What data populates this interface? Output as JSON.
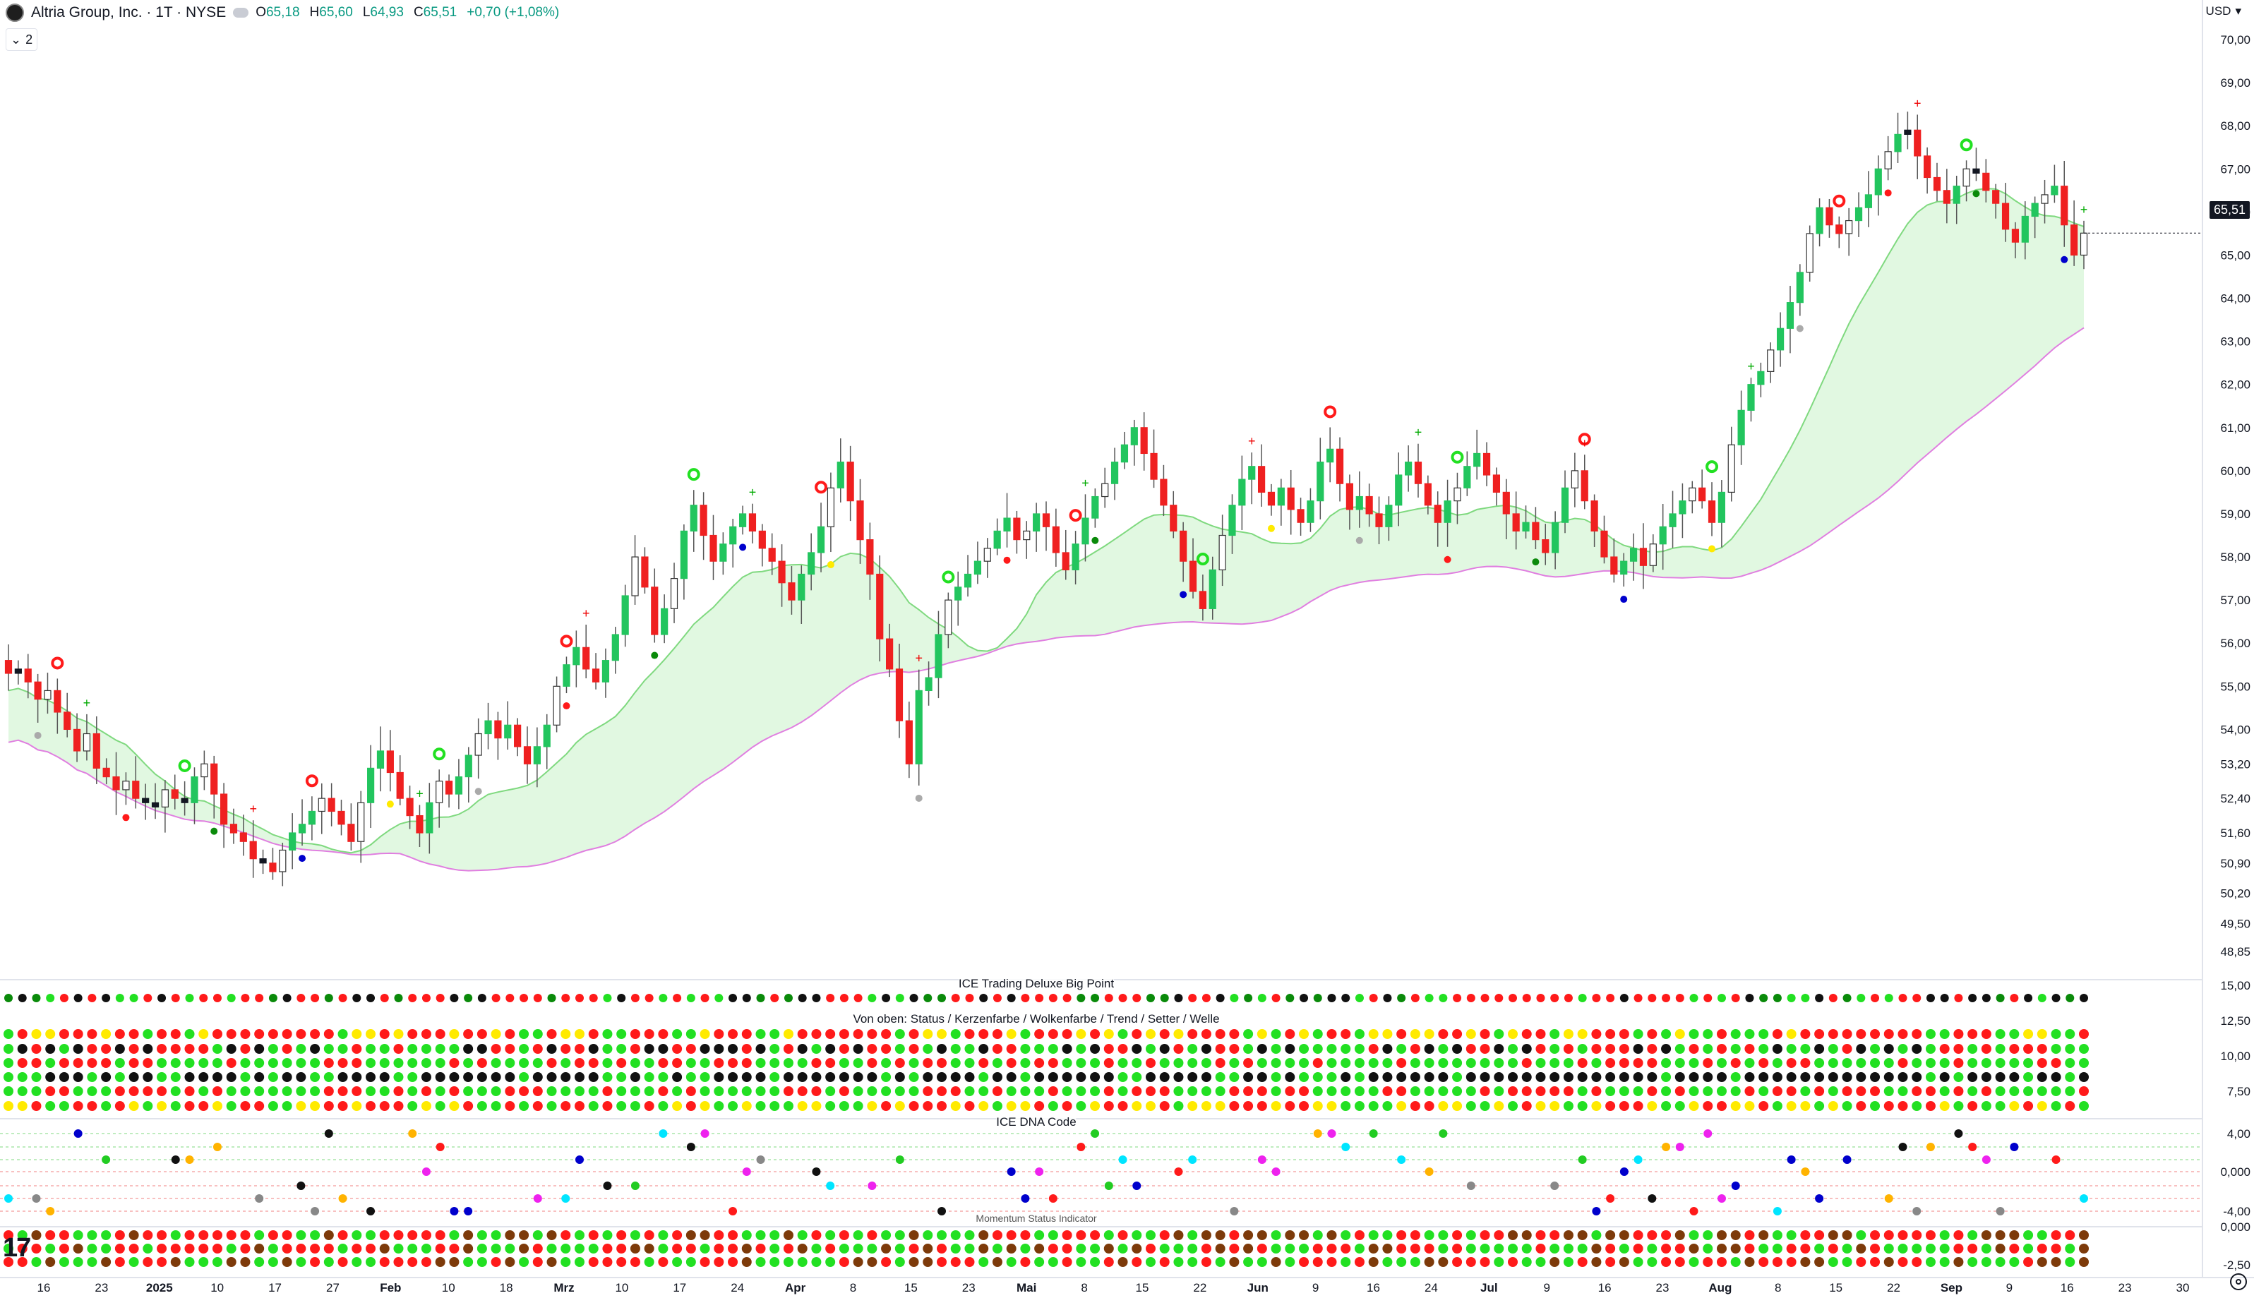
{
  "header": {
    "symbol": "Altria Group, Inc. · 1T · NYSE",
    "open_label": "O",
    "open": "65,18",
    "high_label": "H",
    "high": "65,60",
    "low_label": "L",
    "low": "64,93",
    "close_label": "C",
    "close": "65,51",
    "change": "+0,70 (+1,08%)",
    "indicator_count": "2",
    "currency": "USD"
  },
  "current_price": "65,51",
  "colors": {
    "up": "#22c55e",
    "down": "#ef2020",
    "doji": "#131722",
    "kumo_bull": "#d4f5d4",
    "kumo_bear": "#f8d6f4",
    "span_a": "#7fd97f",
    "span_b": "#e07fe0",
    "dot_red": "#ff1a1a",
    "dot_green": "#22e022",
    "dot_black": "#111111",
    "dot_yellow": "#ffea00",
    "dot_darkgreen": "#0a8a0a",
    "dna_blue": "#0000cc",
    "dna_magenta": "#ee22ee",
    "dna_cyan": "#00e5ff",
    "dna_orange": "#ffb300",
    "dna_lime": "#22cc22"
  },
  "panes": {
    "bigpoint": "ICE Trading Deluxe Big Point",
    "ice_status": "Von oben: Status / Kerzenfarbe / Wolkenfarbe / Trend / Setter / Welle",
    "dna": "ICE DNA Code",
    "momentum": "Momentum Status Indicator"
  },
  "price_axis": [
    "70,00",
    "69,00",
    "68,00",
    "67,00",
    "66,00",
    "65,00",
    "64,00",
    "63,00",
    "62,00",
    "61,00",
    "60,00",
    "59,00",
    "58,00",
    "57,00",
    "56,00",
    "55,00",
    "54,00",
    "53,20",
    "52,40",
    "51,60",
    "50,90",
    "50,20",
    "49,50",
    "48,85"
  ],
  "pane_axis": {
    "bigpoint": [
      "15,00",
      "12,50",
      "10,00",
      "7,50"
    ],
    "dna": [
      "4,00",
      "0,000",
      "-4,00"
    ],
    "momentum": [
      "0,000",
      "-2,50"
    ]
  },
  "time_axis": [
    "16",
    "23",
    "2025",
    "10",
    "17",
    "27",
    "Feb",
    "10",
    "18",
    "Mrz",
    "10",
    "17",
    "24",
    "Apr",
    "8",
    "15",
    "23",
    "Mai",
    "8",
    "15",
    "22",
    "Jun",
    "9",
    "16",
    "24",
    "Jul",
    "9",
    "16",
    "23",
    "Aug",
    "8",
    "15",
    "22",
    "Sep",
    "9",
    "16",
    "23",
    "30"
  ],
  "chart_data": {
    "type": "candlestick",
    "title": "Altria Group, Inc. · 1T · NYSE",
    "currency": "USD",
    "ylim": [
      48.85,
      70.0
    ],
    "last_close": 65.51,
    "start_close": 55.3,
    "closes": [
      55.3,
      55.4,
      55.1,
      54.7,
      54.9,
      54.4,
      54.0,
      53.5,
      53.9,
      53.1,
      52.9,
      52.6,
      52.8,
      52.4,
      52.3,
      52.2,
      52.6,
      52.4,
      52.3,
      52.9,
      53.2,
      52.5,
      51.8,
      51.6,
      51.4,
      51.0,
      50.9,
      50.7,
      51.2,
      51.6,
      51.8,
      52.1,
      52.4,
      52.1,
      51.8,
      51.4,
      52.3,
      53.1,
      53.5,
      53.0,
      52.4,
      52.0,
      51.6,
      52.3,
      52.8,
      52.5,
      52.9,
      53.4,
      53.9,
      54.2,
      53.8,
      54.1,
      53.6,
      53.2,
      53.6,
      54.1,
      55.0,
      55.5,
      55.9,
      55.4,
      55.1,
      55.6,
      56.2,
      57.1,
      58.0,
      57.3,
      56.2,
      56.8,
      57.5,
      58.6,
      59.2,
      58.5,
      57.9,
      58.3,
      58.7,
      59.0,
      58.6,
      58.2,
      57.9,
      57.4,
      57.0,
      57.6,
      58.1,
      58.7,
      59.6,
      60.2,
      59.3,
      58.4,
      57.6,
      56.1,
      55.4,
      54.2,
      53.2,
      54.9,
      55.2,
      56.2,
      57.0,
      57.3,
      57.6,
      57.9,
      58.2,
      58.6,
      58.9,
      58.4,
      58.6,
      59.0,
      58.7,
      58.1,
      57.7,
      58.3,
      58.9,
      59.4,
      59.7,
      60.2,
      60.6,
      61.0,
      60.4,
      59.8,
      59.2,
      58.6,
      57.9,
      57.2,
      56.8,
      57.7,
      58.5,
      59.2,
      59.8,
      60.1,
      59.5,
      59.2,
      59.6,
      59.1,
      58.8,
      59.3,
      60.2,
      60.5,
      59.7,
      59.1,
      59.4,
      59.0,
      58.7,
      59.2,
      59.9,
      60.2,
      59.7,
      59.2,
      58.8,
      59.3,
      59.6,
      60.1,
      60.4,
      59.9,
      59.5,
      59.0,
      58.6,
      58.8,
      58.4,
      58.1,
      58.8,
      59.6,
      60.0,
      59.3,
      58.6,
      58.0,
      57.6,
      57.9,
      58.2,
      57.8,
      58.3,
      58.7,
      59.0,
      59.3,
      59.6,
      59.3,
      58.8,
      59.5,
      60.6,
      61.4,
      62.0,
      62.3,
      62.8,
      63.3,
      63.9,
      64.6,
      65.5,
      66.1,
      65.7,
      65.5,
      65.8,
      66.1,
      66.4,
      67.0,
      67.4,
      67.8,
      67.9,
      67.3,
      66.8,
      66.5,
      66.2,
      66.6,
      67.0,
      66.9,
      66.5,
      66.2,
      65.6,
      65.3,
      65.9,
      66.2,
      66.4,
      66.6,
      65.7,
      65.0,
      65.51
    ]
  }
}
